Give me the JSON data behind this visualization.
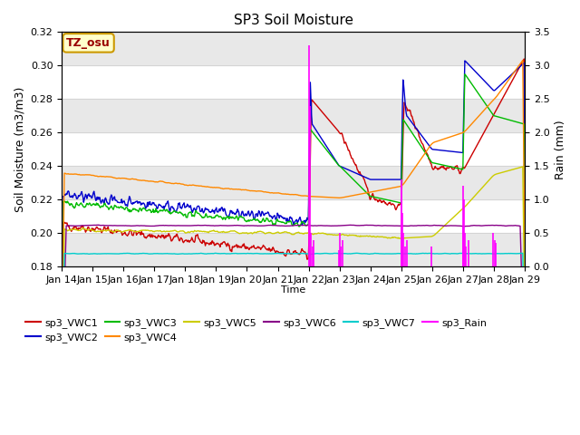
{
  "title": "SP3 Soil Moisture",
  "xlabel": "Time",
  "ylabel_left": "Soil Moisture (m3/m3)",
  "ylabel_right": "Rain (mm)",
  "ylim_left": [
    0.18,
    0.32
  ],
  "ylim_right": [
    0.0,
    3.5
  ],
  "yticks_left": [
    0.18,
    0.2,
    0.22,
    0.24,
    0.26,
    0.28,
    0.3,
    0.32
  ],
  "yticks_right": [
    0.0,
    0.5,
    1.0,
    1.5,
    2.0,
    2.5,
    3.0,
    3.5
  ],
  "background_color": "#ffffff",
  "band_color": "#e8e8e8",
  "tz_label": "TZ_osu",
  "tz_box_color": "#ffffcc",
  "tz_text_color": "#990000",
  "line_colors": {
    "sp3_VWC1": "#cc0000",
    "sp3_VWC2": "#0000cc",
    "sp3_VWC3": "#00bb00",
    "sp3_VWC4": "#ff8800",
    "sp3_VWC5": "#cccc00",
    "sp3_VWC6": "#880088",
    "sp3_VWC7": "#00cccc",
    "sp3_Rain": "#ff00ff"
  },
  "x_start": 14,
  "x_end": 29,
  "x_ticks": [
    14,
    15,
    16,
    17,
    18,
    19,
    20,
    21,
    22,
    23,
    24,
    25,
    26,
    27,
    28,
    29
  ],
  "x_tick_labels": [
    "Jan 14",
    "Jan 15",
    "Jan 16",
    "Jan 17",
    "Jan 18",
    "Jan 19",
    "Jan 20",
    "Jan 21",
    "Jan 22",
    "Jan 23",
    "Jan 24",
    "Jan 25",
    "Jan 26",
    "Jan 27",
    "Jan 28",
    "Jan 29"
  ]
}
